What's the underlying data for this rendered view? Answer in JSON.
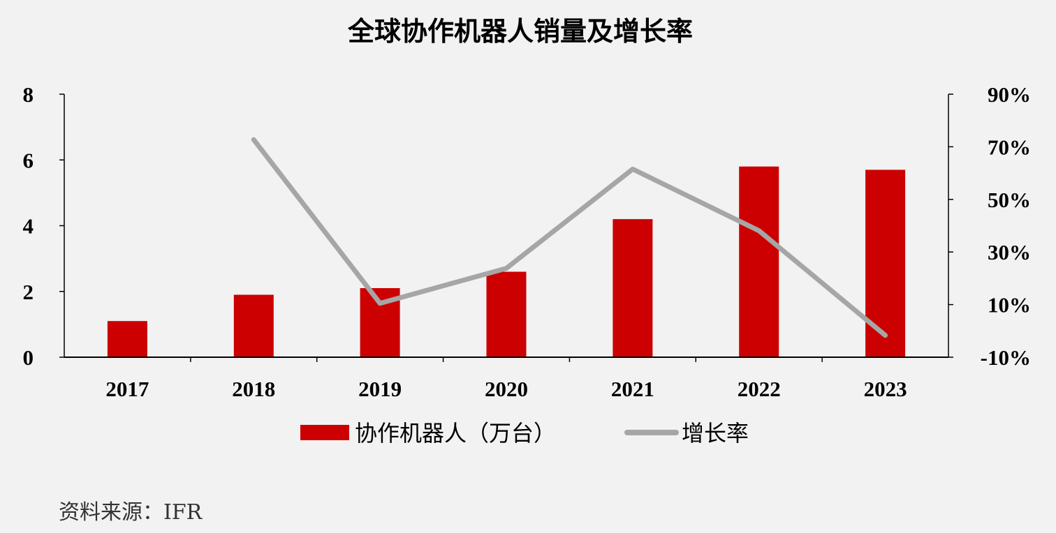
{
  "chart_data": {
    "type": "bar",
    "title": "全球协作机器人销量及增长率",
    "categories": [
      "2017",
      "2018",
      "2019",
      "2020",
      "2021",
      "2022",
      "2023"
    ],
    "series": [
      {
        "name": "协作机器人（万台）",
        "type": "bar",
        "axis": "left",
        "color": "#cc0000",
        "values": [
          1.1,
          1.9,
          2.1,
          2.6,
          4.2,
          5.8,
          5.7
        ]
      },
      {
        "name": "增长率",
        "type": "line",
        "axis": "right",
        "color": "#a6a6a6",
        "values": [
          null,
          72.7,
          10.5,
          23.8,
          61.5,
          38.1,
          -1.7
        ]
      }
    ],
    "y_left": {
      "min": 0,
      "max": 8,
      "ticks": [
        "0",
        "2",
        "4",
        "6",
        "8"
      ],
      "tick_values": [
        0,
        2,
        4,
        6,
        8
      ]
    },
    "y_right": {
      "min": -10,
      "max": 90,
      "ticks": [
        "-10%",
        "10%",
        "30%",
        "50%",
        "70%",
        "90%"
      ],
      "tick_values": [
        -10,
        10,
        30,
        50,
        70,
        90
      ]
    },
    "grid": false,
    "legend_position": "bottom",
    "source": "资料来源：IFR"
  }
}
